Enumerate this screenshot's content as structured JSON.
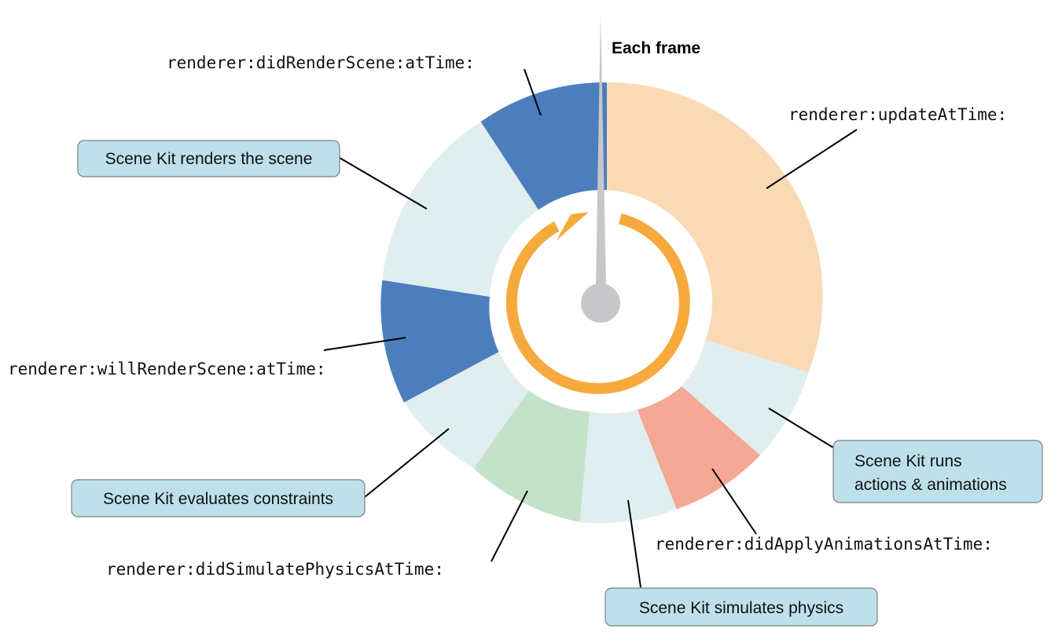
{
  "title": "Each frame",
  "colors": {
    "delegate_blue": "#4c7ebe",
    "neutral": "#e0eef0",
    "update_orange": "#fad9b5",
    "animation_red": "#f4a895",
    "physics_green": "#c4e2c9",
    "loop_arrow": "#f6a93d",
    "hand": "#c7c7c9",
    "callout_fill": "#bde0eb"
  },
  "phases": [
    {
      "id": "update",
      "kind": "delegate",
      "color_key": "update_orange",
      "label": "renderer:updateAtTime:"
    },
    {
      "id": "actions",
      "kind": "scenekit",
      "color_key": "neutral",
      "label": "Scene Kit runs actions & animations"
    },
    {
      "id": "did_apply",
      "kind": "delegate",
      "color_key": "animation_red",
      "label": "renderer:didApplyAnimationsAtTime:"
    },
    {
      "id": "physics",
      "kind": "scenekit",
      "color_key": "neutral",
      "label": "Scene Kit simulates physics"
    },
    {
      "id": "did_simulate",
      "kind": "delegate",
      "color_key": "physics_green",
      "label": "renderer:didSimulatePhysicsAtTime:"
    },
    {
      "id": "constraints",
      "kind": "scenekit",
      "color_key": "neutral",
      "label": "Scene Kit evaluates constraints"
    },
    {
      "id": "will_render",
      "kind": "delegate",
      "color_key": "delegate_blue",
      "label": "renderer:willRenderScene:atTime:"
    },
    {
      "id": "render",
      "kind": "scenekit",
      "color_key": "neutral",
      "label": "Scene Kit renders the scene"
    },
    {
      "id": "did_render",
      "kind": "delegate",
      "color_key": "delegate_blue",
      "label": "renderer:didRenderScene:atTime:"
    }
  ],
  "box_labels": {
    "actions_line1": "Scene Kit runs",
    "actions_line2": "actions & animations"
  }
}
